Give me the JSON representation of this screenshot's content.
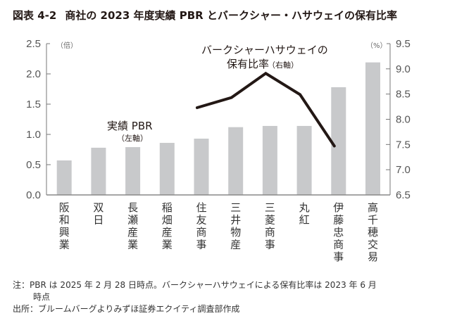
{
  "title": {
    "number": "図表 4-2",
    "text": "商社の 2023 年度実績 PBR とバークシャー・ハサウェイの保有比率"
  },
  "chart_data": {
    "type": "bar+line",
    "categories": [
      "阪和興業",
      "双日",
      "長瀬産業",
      "稲畑産業",
      "住友商事",
      "三井物産",
      "三菱商事",
      "丸紅",
      "伊藤忠商事",
      "高千穂交易"
    ],
    "series": [
      {
        "name": "実績 PBR",
        "axis_note": "（左軸）",
        "type": "bar",
        "axis": "left",
        "color": "#c8c9cb",
        "values": [
          0.57,
          0.78,
          0.79,
          0.86,
          0.93,
          1.12,
          1.14,
          1.14,
          1.78,
          2.19
        ]
      },
      {
        "name": "バークシャーハサウェイの",
        "name_line2": "保有比率",
        "axis_note": "（右軸）",
        "type": "line",
        "axis": "right",
        "color": "#231815",
        "values": [
          null,
          null,
          null,
          null,
          8.23,
          8.43,
          8.91,
          8.49,
          7.47,
          null
        ]
      }
    ],
    "left_axis": {
      "unit": "（倍）",
      "ylim": [
        0.0,
        2.5
      ],
      "ticks": [
        "0.0",
        "0.5",
        "1.0",
        "1.5",
        "2.0",
        "2.5"
      ],
      "tick_values": [
        0.0,
        0.5,
        1.0,
        1.5,
        2.0,
        2.5
      ]
    },
    "right_axis": {
      "unit": "（%）",
      "ylim": [
        6.5,
        9.5
      ],
      "ticks": [
        "6.5",
        "7.0",
        "7.5",
        "8.0",
        "8.5",
        "9.0",
        "9.5"
      ],
      "tick_values": [
        6.5,
        7.0,
        7.5,
        8.0,
        8.5,
        9.0,
        9.5
      ]
    },
    "grid": false,
    "legend": "inline annotations"
  },
  "notes": {
    "note_line1": "注：PBR は 2025 年 2 月 28 日時点。バークシャーハサウェイによる保有比率は 2023 年 6 月",
    "note_line2": "時点",
    "source": "出所：ブルームバーグよりみずほ証券エクイティ調査部作成"
  }
}
